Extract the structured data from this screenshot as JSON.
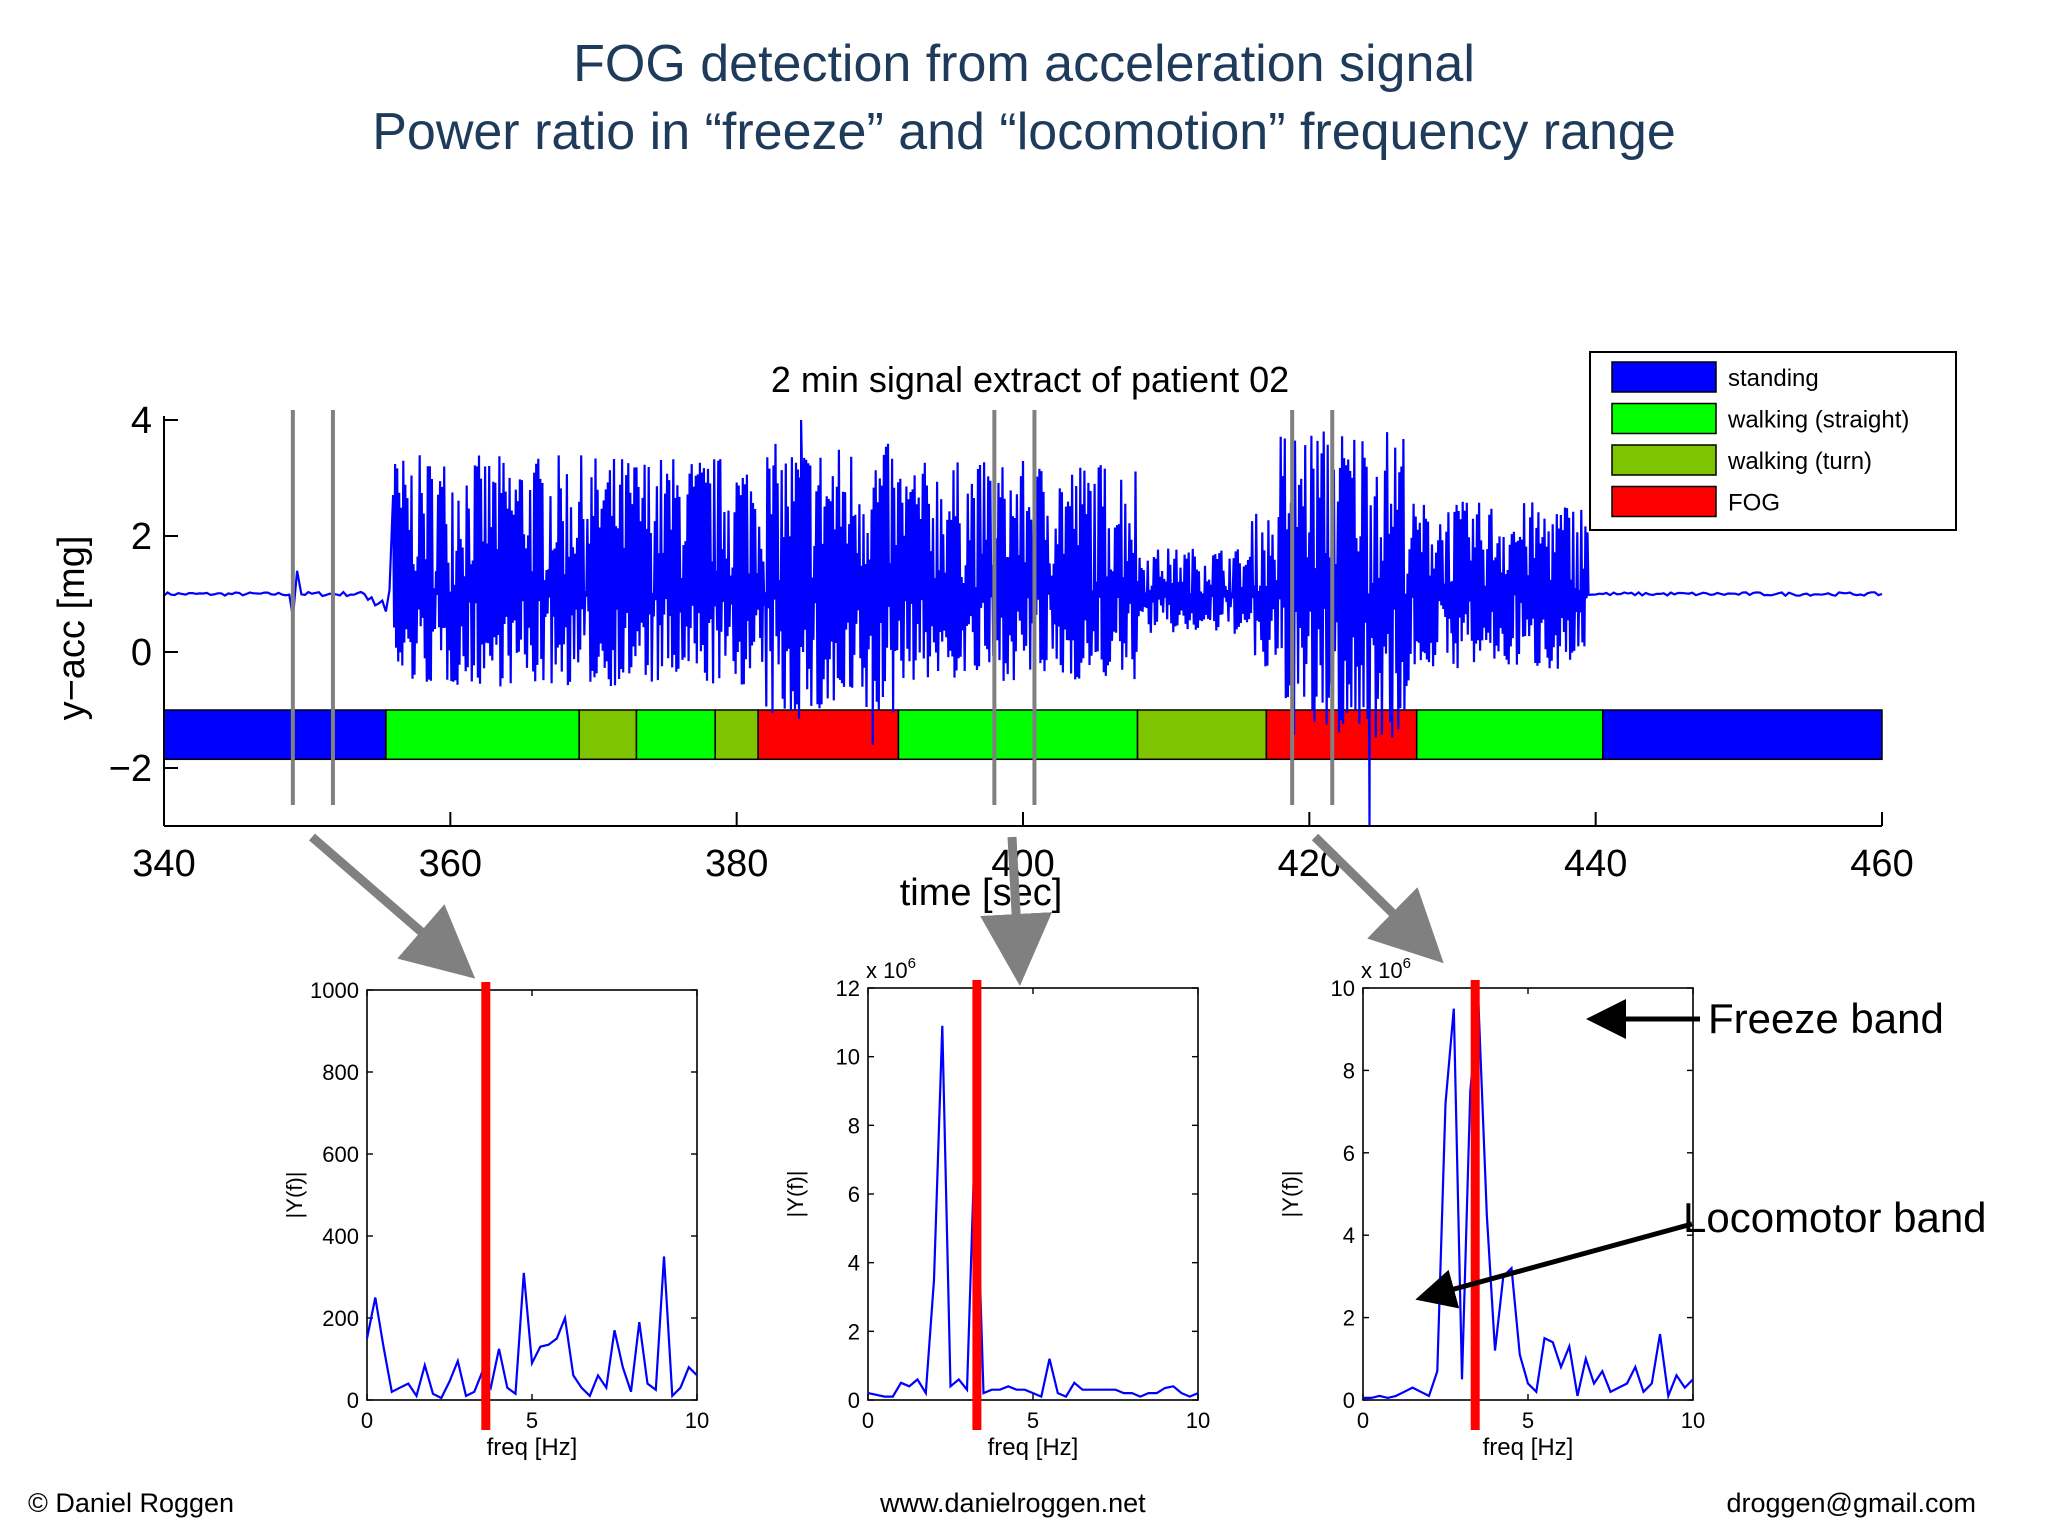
{
  "slide": {
    "title_line1": "FOG detection from acceleration signal",
    "title_line2": "Power ratio in “freeze” and “locomotion” frequency range",
    "footer_left": "© Daniel Roggen",
    "footer_center": "www.danielroggen.net",
    "footer_right": "droggen@gmail.com"
  },
  "annotations": {
    "freeze_band": "Freeze band",
    "locomotor_band": "Locomotor band"
  },
  "chart_data": [
    {
      "type": "line",
      "title": "2 min signal extract of patient 02",
      "xlabel": "time [sec]",
      "ylabel": "y−acc [mg]",
      "xlim": [
        340,
        460
      ],
      "ylim": [
        -3,
        4
      ],
      "xticks": [
        340,
        360,
        380,
        400,
        420,
        440,
        460
      ],
      "yticks": [
        4,
        2,
        0,
        -2
      ],
      "ytick_labels": [
        "4",
        "2",
        "0",
        "−2"
      ],
      "series": [
        {
          "color": "#0000ff",
          "segments": [
            {
              "from": 340,
              "to": 349,
              "type": "flat",
              "level": 1.0,
              "amp": 0.03
            },
            {
              "from": 349,
              "to": 349.6,
              "type": "spike",
              "level": 1.0,
              "min": 0.6,
              "max": 1.4
            },
            {
              "from": 349.6,
              "to": 354,
              "type": "flat",
              "level": 1.0,
              "amp": 0.04
            },
            {
              "from": 354,
              "to": 356,
              "type": "ramp",
              "level": 1.0,
              "amp": 1.2
            },
            {
              "from": 356,
              "to": 382,
              "type": "osc",
              "level": 1.0,
              "min": -0.6,
              "max": 3.4
            },
            {
              "from": 382,
              "to": 391,
              "type": "osc",
              "level": 1.0,
              "min": -1.2,
              "max": 3.6
            },
            {
              "from": 391,
              "to": 408,
              "type": "osc",
              "level": 1.0,
              "min": -0.5,
              "max": 3.3
            },
            {
              "from": 408,
              "to": 416,
              "type": "osc",
              "level": 1.0,
              "min": 0.3,
              "max": 1.8
            },
            {
              "from": 416,
              "to": 418,
              "type": "osc",
              "level": 1.0,
              "min": -0.4,
              "max": 2.4
            },
            {
              "from": 418,
              "to": 427,
              "type": "osc",
              "level": 1.0,
              "min": -1.5,
              "max": 3.9
            },
            {
              "from": 427,
              "to": 439.5,
              "type": "osc",
              "level": 1.0,
              "min": -0.3,
              "max": 2.6
            },
            {
              "from": 439.5,
              "to": 460,
              "type": "flat",
              "level": 1.0,
              "amp": 0.03
            }
          ],
          "extra_points": [
            [
              384.5,
              4.0
            ],
            [
              424.2,
              -3.0
            ],
            [
              389.5,
              -1.6
            ]
          ]
        }
      ],
      "activity_bar": {
        "y_range": [
          -1.85,
          -1.0
        ],
        "segments": [
          {
            "from": 340,
            "to": 355.5,
            "label": "standing"
          },
          {
            "from": 355.5,
            "to": 369,
            "label": "walking (straight)"
          },
          {
            "from": 369,
            "to": 373,
            "label": "walking (turn)"
          },
          {
            "from": 373,
            "to": 378.5,
            "label": "walking (straight)"
          },
          {
            "from": 378.5,
            "to": 381.5,
            "label": "walking (turn)"
          },
          {
            "from": 381.5,
            "to": 391.3,
            "label": "FOG"
          },
          {
            "from": 391.3,
            "to": 408,
            "label": "walking (straight)"
          },
          {
            "from": 408,
            "to": 417,
            "label": "walking (turn)"
          },
          {
            "from": 417,
            "to": 427.5,
            "label": "FOG"
          },
          {
            "from": 427.5,
            "to": 440.5,
            "label": "walking (straight)"
          },
          {
            "from": 440.5,
            "to": 460,
            "label": "standing"
          }
        ]
      },
      "window_markers": [
        349,
        351.8,
        398,
        400.8,
        418.8,
        421.6
      ],
      "legend": {
        "placement": "top-right",
        "entries": [
          {
            "label": "standing",
            "color": "#0000ff"
          },
          {
            "label": "walking (straight)",
            "color": "#00ff00"
          },
          {
            "label": "walking (turn)",
            "color": "#7fc400"
          },
          {
            "label": "FOG",
            "color": "#ff0000"
          }
        ]
      }
    },
    {
      "type": "line",
      "xlabel": "freq [Hz]",
      "ylabel": "|Y(f)|",
      "xlim": [
        0,
        10
      ],
      "ylim": [
        0,
        1000
      ],
      "xticks": [
        0,
        5,
        10
      ],
      "yticks": [
        0,
        200,
        400,
        600,
        800,
        1000
      ],
      "multiplier": "",
      "threshold_line": 3.6,
      "series": [
        {
          "color": "#0000ff",
          "x": [
            0,
            0.25,
            0.5,
            0.75,
            1.0,
            1.25,
            1.5,
            1.75,
            2.0,
            2.25,
            2.5,
            2.75,
            3.0,
            3.25,
            3.5,
            3.75,
            4.0,
            4.25,
            4.5,
            4.75,
            5.0,
            5.25,
            5.5,
            5.75,
            6.0,
            6.25,
            6.5,
            6.75,
            7.0,
            7.25,
            7.5,
            7.75,
            8.0,
            8.25,
            8.5,
            8.75,
            9.0,
            9.25,
            9.5,
            9.75,
            10.0
          ],
          "y": [
            150,
            250,
            130,
            20,
            30,
            40,
            10,
            85,
            15,
            5,
            45,
            95,
            10,
            20,
            70,
            30,
            125,
            30,
            15,
            310,
            90,
            130,
            135,
            150,
            200,
            60,
            30,
            10,
            60,
            30,
            170,
            80,
            20,
            190,
            40,
            25,
            350,
            10,
            30,
            80,
            60
          ]
        }
      ]
    },
    {
      "type": "line",
      "xlabel": "freq [Hz]",
      "ylabel": "|Y(f)|",
      "xlim": [
        0,
        10
      ],
      "ylim": [
        0,
        12
      ],
      "xticks": [
        0,
        5,
        10
      ],
      "yticks": [
        0,
        2,
        4,
        6,
        8,
        10,
        12
      ],
      "multiplier": "x 10",
      "multiplier_exp": "6",
      "threshold_line": 3.3,
      "series": [
        {
          "color": "#0000ff",
          "x": [
            0,
            0.25,
            0.5,
            0.75,
            1.0,
            1.25,
            1.5,
            1.75,
            2.0,
            2.25,
            2.5,
            2.75,
            3.0,
            3.25,
            3.5,
            3.75,
            4.0,
            4.25,
            4.5,
            4.75,
            5.0,
            5.25,
            5.5,
            5.75,
            6.0,
            6.25,
            6.5,
            6.75,
            7.0,
            7.25,
            7.5,
            7.75,
            8.0,
            8.25,
            8.5,
            8.75,
            9.0,
            9.25,
            9.5,
            9.75,
            10.0
          ],
          "y": [
            0.2,
            0.15,
            0.1,
            0.1,
            0.5,
            0.4,
            0.6,
            0.2,
            3.5,
            10.9,
            0.4,
            0.6,
            0.3,
            7.9,
            0.2,
            0.3,
            0.3,
            0.4,
            0.3,
            0.3,
            0.2,
            0.1,
            1.2,
            0.2,
            0.1,
            0.5,
            0.3,
            0.3,
            0.3,
            0.3,
            0.3,
            0.2,
            0.2,
            0.1,
            0.2,
            0.2,
            0.35,
            0.4,
            0.2,
            0.1,
            0.2
          ]
        }
      ]
    },
    {
      "type": "line",
      "xlabel": "freq [Hz]",
      "ylabel": "|Y(f)|",
      "xlim": [
        0,
        10
      ],
      "ylim": [
        0,
        10
      ],
      "xticks": [
        0,
        5,
        10
      ],
      "yticks": [
        0,
        2,
        4,
        6,
        8,
        10
      ],
      "multiplier": "x 10",
      "multiplier_exp": "6",
      "threshold_line": 3.4,
      "series": [
        {
          "color": "#0000ff",
          "x": [
            0,
            0.25,
            0.5,
            0.75,
            1.0,
            1.25,
            1.5,
            1.75,
            2.0,
            2.25,
            2.5,
            2.75,
            3.0,
            3.25,
            3.5,
            3.75,
            4.0,
            4.25,
            4.5,
            4.75,
            5.0,
            5.25,
            5.5,
            5.75,
            6.0,
            6.25,
            6.5,
            6.75,
            7.0,
            7.25,
            7.5,
            7.75,
            8.0,
            8.25,
            8.5,
            8.75,
            9.0,
            9.25,
            9.5,
            9.75,
            10.0
          ],
          "y": [
            0.05,
            0.05,
            0.1,
            0.05,
            0.1,
            0.2,
            0.3,
            0.2,
            0.1,
            0.7,
            7.2,
            9.5,
            0.5,
            7.5,
            9.6,
            4.5,
            1.2,
            3.0,
            3.2,
            1.1,
            0.4,
            0.2,
            1.5,
            1.4,
            0.8,
            1.3,
            0.1,
            1.0,
            0.4,
            0.7,
            0.2,
            0.3,
            0.4,
            0.8,
            0.2,
            0.4,
            1.6,
            0.1,
            0.6,
            0.3,
            0.5
          ]
        }
      ]
    }
  ]
}
